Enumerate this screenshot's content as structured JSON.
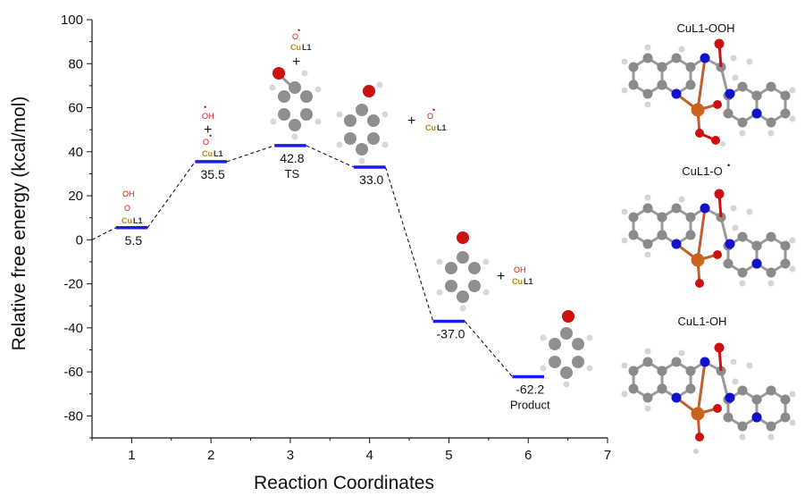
{
  "chart_data": {
    "type": "line",
    "xlabel": "Reaction Coordinates",
    "ylabel": "Relative free energy (kcal/mol)",
    "xlim": [
      0.5,
      7
    ],
    "ylim": [
      -90,
      100
    ],
    "x_ticks": [
      "1",
      "2",
      "3",
      "4",
      "5",
      "6",
      "7"
    ],
    "y_ticks": [
      "100",
      "80",
      "60",
      "40",
      "20",
      "0",
      "-20",
      "-40",
      "-60",
      "-80"
    ],
    "points": [
      {
        "x": 1,
        "y": 5.5,
        "label": "5.5",
        "state": ""
      },
      {
        "x": 2,
        "y": 35.5,
        "label": "35.5",
        "state": ""
      },
      {
        "x": 3,
        "y": 42.8,
        "label": "42.8",
        "state": "TS"
      },
      {
        "x": 4,
        "y": 33.0,
        "label": "33.0",
        "state": ""
      },
      {
        "x": 5,
        "y": -37.0,
        "label": "-37.0",
        "state": ""
      },
      {
        "x": 6,
        "y": -62.2,
        "label": "-62.2",
        "state": "Product"
      }
    ],
    "start": {
      "x": 0.5,
      "y": 0
    },
    "level_color": "#1a1aff",
    "connector_color": "#111111",
    "structure_labels": [
      "CuL1-OOH",
      "CuL1-O",
      "CuL1-OH"
    ],
    "chem_text": {
      "oh": "OH",
      "o": "O",
      "cu": "Cu",
      "l1": "L1",
      "radical": "•",
      "plus": "+"
    }
  }
}
